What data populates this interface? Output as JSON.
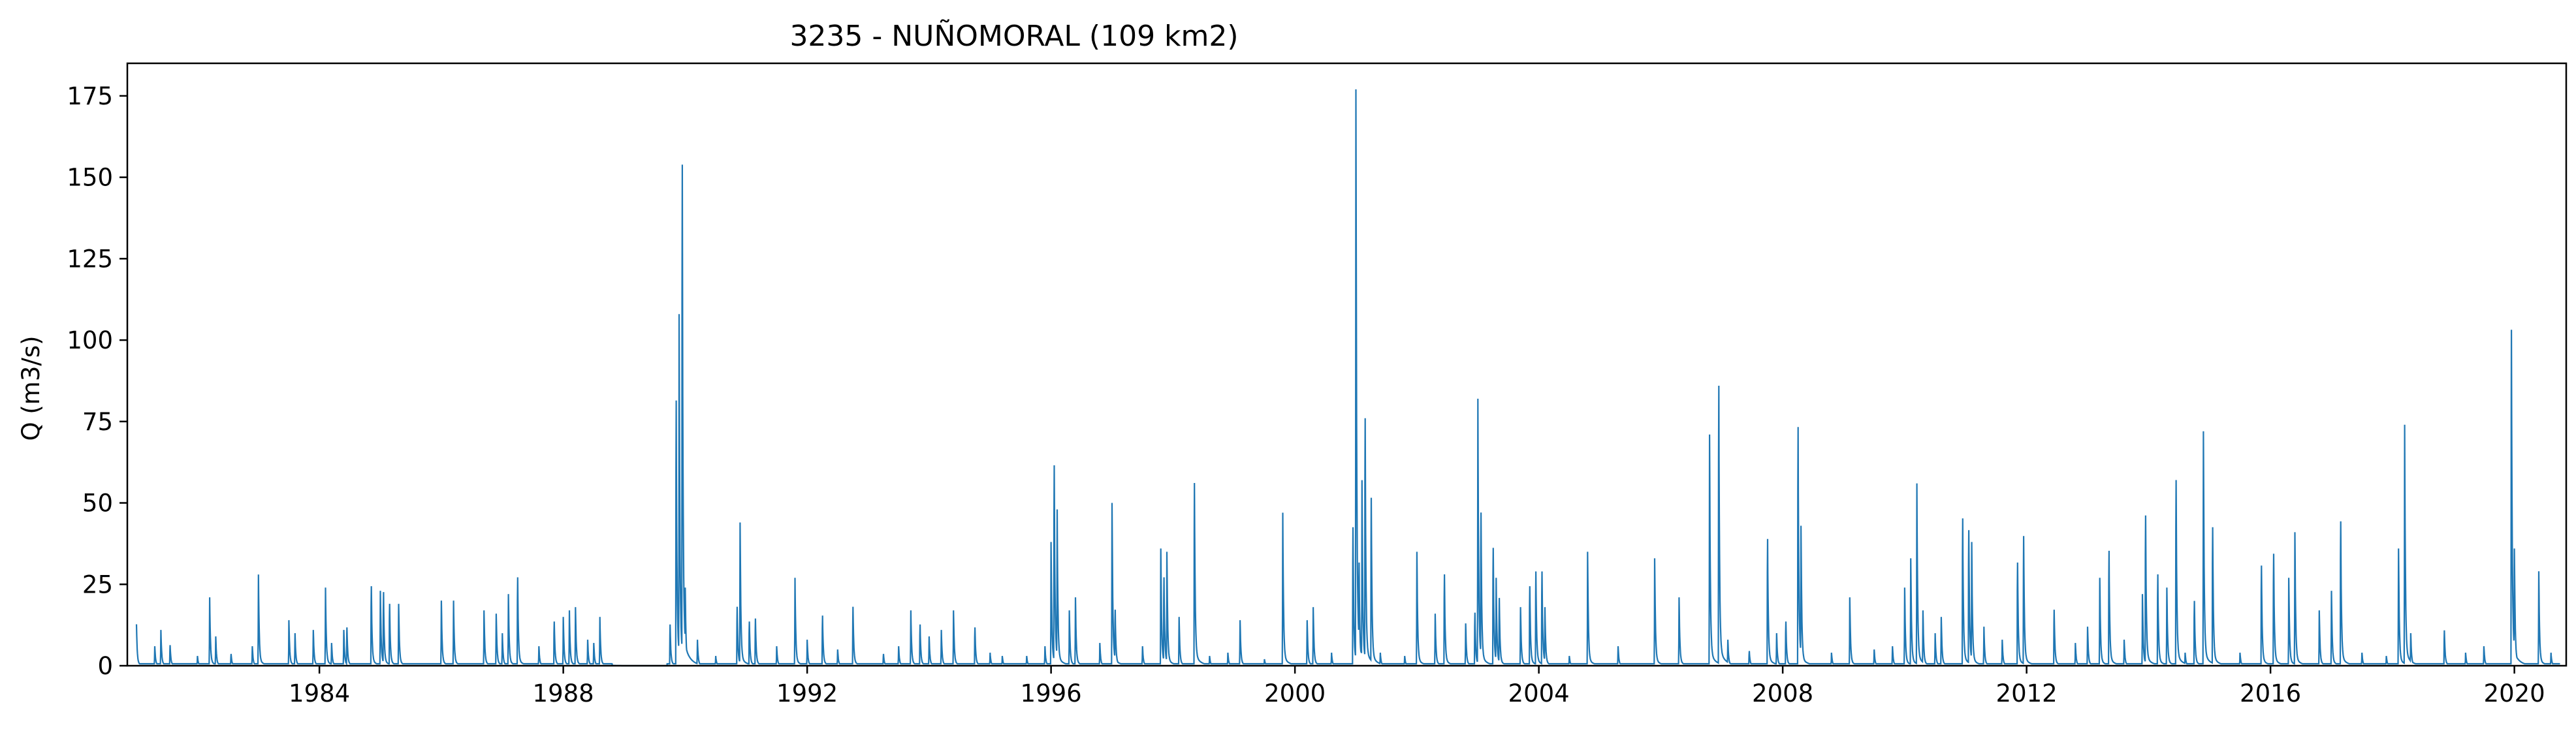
{
  "chart_data": {
    "type": "line",
    "title": "3235 - NUÑOMORAL (109 km2)",
    "xlabel": "",
    "ylabel": "Q (m3/s)",
    "xlim": [
      1980.85,
      2020.85
    ],
    "ylim": [
      0,
      185
    ],
    "x_ticks": [
      "1984",
      "1988",
      "1992",
      "1996",
      "2000",
      "2004",
      "2008",
      "2012",
      "2016",
      "2020"
    ],
    "y_ticks": [
      "0",
      "25",
      "50",
      "75",
      "100",
      "125",
      "150",
      "175"
    ],
    "grid": false,
    "color": "#1f77b4",
    "series": [
      {
        "peaks": [
          [
            1981.0,
            12
          ],
          [
            1981.3,
            6
          ],
          [
            1981.4,
            11
          ],
          [
            1981.55,
            7
          ],
          [
            1982.0,
            3
          ],
          [
            1982.2,
            21
          ],
          [
            1982.3,
            9
          ],
          [
            1982.55,
            4
          ],
          [
            1982.9,
            6
          ],
          [
            1983.0,
            28
          ],
          [
            1983.5,
            14
          ],
          [
            1983.6,
            10
          ],
          [
            1983.9,
            11
          ],
          [
            1984.1,
            24
          ],
          [
            1984.2,
            7
          ],
          [
            1984.4,
            11
          ],
          [
            1984.45,
            13
          ],
          [
            1984.85,
            27
          ],
          [
            1985.0,
            23
          ],
          [
            1985.05,
            25
          ],
          [
            1985.15,
            21
          ],
          [
            1985.3,
            19
          ],
          [
            1986.0,
            20
          ],
          [
            1986.2,
            20
          ],
          [
            1986.7,
            17
          ],
          [
            1986.9,
            16
          ],
          [
            1987.0,
            10
          ],
          [
            1987.1,
            22
          ],
          [
            1987.25,
            30
          ],
          [
            1987.6,
            6
          ],
          [
            1987.85,
            15
          ],
          [
            1988.0,
            15
          ],
          [
            1988.1,
            17
          ],
          [
            1988.2,
            18
          ],
          [
            1988.4,
            8
          ],
          [
            1988.5,
            7
          ],
          [
            1988.6,
            15
          ],
          [
            1989.75,
            14
          ],
          [
            1989.85,
            90
          ],
          [
            1989.9,
            108
          ],
          [
            1989.95,
            170
          ],
          [
            1990.0,
            24
          ],
          [
            1990.2,
            8
          ],
          [
            1990.5,
            3
          ],
          [
            1990.85,
            20
          ],
          [
            1990.9,
            44
          ],
          [
            1991.05,
            15
          ],
          [
            1991.15,
            16
          ],
          [
            1991.5,
            6
          ],
          [
            1991.8,
            27
          ],
          [
            1992.0,
            8
          ],
          [
            1992.25,
            17
          ],
          [
            1992.5,
            5
          ],
          [
            1992.75,
            20
          ],
          [
            1993.25,
            4
          ],
          [
            1993.5,
            6
          ],
          [
            1993.7,
            17
          ],
          [
            1993.85,
            14
          ],
          [
            1994.0,
            9
          ],
          [
            1994.2,
            11
          ],
          [
            1994.4,
            17
          ],
          [
            1994.75,
            13
          ],
          [
            1995.0,
            4
          ],
          [
            1995.2,
            3
          ],
          [
            1995.6,
            3
          ],
          [
            1995.9,
            6
          ],
          [
            1996.0,
            38
          ],
          [
            1996.05,
            68
          ],
          [
            1996.1,
            48
          ],
          [
            1996.3,
            17
          ],
          [
            1996.4,
            21
          ],
          [
            1996.8,
            7
          ],
          [
            1997.0,
            50
          ],
          [
            1997.05,
            19
          ],
          [
            1997.5,
            6
          ],
          [
            1997.8,
            36
          ],
          [
            1997.85,
            30
          ],
          [
            1997.9,
            35
          ],
          [
            1998.1,
            15
          ],
          [
            1998.35,
            62
          ],
          [
            1998.6,
            3
          ],
          [
            1998.9,
            4
          ],
          [
            1999.1,
            14
          ],
          [
            1999.5,
            2
          ],
          [
            1999.8,
            47
          ],
          [
            2000.2,
            14
          ],
          [
            2000.3,
            18
          ],
          [
            2000.6,
            4
          ],
          [
            2000.95,
            47
          ],
          [
            2001.0,
            177
          ],
          [
            2001.05,
            35
          ],
          [
            2001.1,
            57
          ],
          [
            2001.15,
            84
          ],
          [
            2001.25,
            57
          ],
          [
            2001.4,
            4
          ],
          [
            2001.8,
            3
          ],
          [
            2002.0,
            35
          ],
          [
            2002.3,
            16
          ],
          [
            2002.45,
            31
          ],
          [
            2002.8,
            13
          ],
          [
            2002.95,
            18
          ],
          [
            2003.0,
            82
          ],
          [
            2003.05,
            52
          ],
          [
            2003.25,
            40
          ],
          [
            2003.3,
            27
          ],
          [
            2003.35,
            23
          ],
          [
            2003.7,
            18
          ],
          [
            2003.85,
            27
          ],
          [
            2003.95,
            32
          ],
          [
            2004.05,
            32
          ],
          [
            2004.1,
            18
          ],
          [
            2004.5,
            3
          ],
          [
            2004.8,
            35
          ],
          [
            2005.3,
            6
          ],
          [
            2005.9,
            33
          ],
          [
            2006.3,
            21
          ],
          [
            2006.8,
            71
          ],
          [
            2006.95,
            95
          ],
          [
            2007.1,
            8
          ],
          [
            2007.45,
            5
          ],
          [
            2007.75,
            43
          ],
          [
            2007.9,
            10
          ],
          [
            2008.05,
            15
          ],
          [
            2008.25,
            81
          ],
          [
            2008.3,
            43
          ],
          [
            2008.8,
            4
          ],
          [
            2009.1,
            21
          ],
          [
            2009.5,
            5
          ],
          [
            2009.8,
            6
          ],
          [
            2010.0,
            24
          ],
          [
            2010.1,
            33
          ],
          [
            2010.2,
            56
          ],
          [
            2010.3,
            17
          ],
          [
            2010.5,
            10
          ],
          [
            2010.6,
            15
          ],
          [
            2010.95,
            50
          ],
          [
            2011.05,
            46
          ],
          [
            2011.1,
            38
          ],
          [
            2011.3,
            12
          ],
          [
            2011.6,
            8
          ],
          [
            2011.85,
            35
          ],
          [
            2011.95,
            44
          ],
          [
            2012.45,
            19
          ],
          [
            2012.8,
            7
          ],
          [
            2013.0,
            12
          ],
          [
            2013.2,
            27
          ],
          [
            2013.35,
            39
          ],
          [
            2013.6,
            8
          ],
          [
            2013.9,
            22
          ],
          [
            2013.95,
            51
          ],
          [
            2014.15,
            31
          ],
          [
            2014.3,
            24
          ],
          [
            2014.45,
            63
          ],
          [
            2014.6,
            4
          ],
          [
            2014.75,
            22
          ],
          [
            2014.9,
            72
          ],
          [
            2015.05,
            47
          ],
          [
            2015.5,
            4
          ],
          [
            2015.85,
            34
          ],
          [
            2016.05,
            38
          ],
          [
            2016.3,
            27
          ],
          [
            2016.4,
            41
          ],
          [
            2016.8,
            17
          ],
          [
            2017.0,
            23
          ],
          [
            2017.15,
            49
          ],
          [
            2017.5,
            4
          ],
          [
            2017.9,
            3
          ],
          [
            2018.1,
            36
          ],
          [
            2018.2,
            74
          ],
          [
            2018.3,
            10
          ],
          [
            2018.85,
            12
          ],
          [
            2019.2,
            4
          ],
          [
            2019.5,
            6
          ],
          [
            2019.95,
            114
          ],
          [
            2020.0,
            36
          ],
          [
            2020.4,
            29
          ],
          [
            2020.6,
            4
          ]
        ]
      }
    ]
  }
}
